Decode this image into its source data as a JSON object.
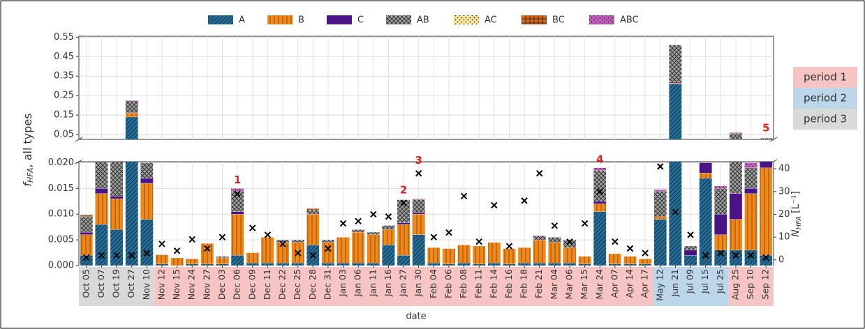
{
  "chart_data": {
    "type": "stacked-bar-broken",
    "xlabel": "date",
    "ylabel": {
      "symbol": "f",
      "subscript": "HFA",
      "rest": ", all types"
    },
    "y2label": {
      "symbol": "N",
      "subscript": "HFA",
      "unit": "[L⁻¹]"
    },
    "categories": [
      "Oct 05",
      "Oct 07",
      "Oct 19",
      "Oct 27",
      "Nov 10",
      "Nov 12",
      "Nov 15",
      "Nov 24",
      "Nov 27",
      "Dec 03",
      "Dec 06",
      "Dec 09",
      "Dec 11",
      "Dec 22",
      "Dec 25",
      "Dec 28",
      "Dec 31",
      "Jan 03",
      "Jan 06",
      "Jan 11",
      "Jan 16",
      "Jan 27",
      "Jan 30",
      "Feb 04",
      "Feb 06",
      "Feb 08",
      "Feb 11",
      "Feb 14",
      "Feb 16",
      "Feb 18",
      "Feb 21",
      "Mar 04",
      "Mar 06",
      "Mar 15",
      "Mar 24",
      "Apr 07",
      "Apr 14",
      "Apr 17",
      "May 12",
      "Jun 21",
      "Jul 09",
      "Jul 15",
      "Jul 25",
      "Aug 25",
      "Sep 10",
      "Sep 12"
    ],
    "series": [
      {
        "name": "A",
        "color": "#1f6e9c",
        "hatch": "diag",
        "values": [
          0.002,
          0.008,
          0.007,
          0.14,
          0.009,
          0.0003,
          0,
          0.0003,
          0.0003,
          0.0003,
          0.002,
          0.0005,
          0.0005,
          0.0005,
          0.0005,
          0.004,
          0.0005,
          0.0005,
          0.0005,
          0.0005,
          0.004,
          0.002,
          0.006,
          0.0005,
          0.0003,
          0.0005,
          0.0003,
          0.0005,
          0.0003,
          0.0005,
          0.0005,
          0.0005,
          0.0005,
          0.0003,
          0.0105,
          0.0003,
          0.0003,
          0.0003,
          0.009,
          0.31,
          0.002,
          0.017,
          0.003,
          0.003,
          0.003,
          0.002
        ]
      },
      {
        "name": "B",
        "color": "#f0891c",
        "hatch": "vert",
        "values": [
          0.004,
          0.006,
          0.006,
          0.02,
          0.007,
          0.0018,
          0.0015,
          0.001,
          0.004,
          0.0012,
          0.008,
          0.002,
          0.005,
          0.004,
          0.004,
          0.006,
          0.004,
          0.005,
          0.006,
          0.0055,
          0.003,
          0.006,
          0.004,
          0.003,
          0.003,
          0.0035,
          0.0035,
          0.004,
          0.003,
          0.003,
          0.0045,
          0.004,
          0.003,
          0.0015,
          0.0015,
          0.002,
          0.0015,
          0.001,
          0.0005,
          0.005,
          0,
          0.001,
          0.003,
          0.006,
          0.011,
          0.017
        ]
      },
      {
        "name": "C",
        "color": "#4a1486",
        "hatch": "none",
        "values": [
          0.0005,
          0.001,
          0.0005,
          0.003,
          0.001,
          0,
          0,
          0,
          0,
          0,
          0.0005,
          0,
          0,
          0,
          0,
          0,
          0,
          0,
          0,
          0,
          0,
          0.0003,
          0.0003,
          0,
          0,
          0,
          0,
          0,
          0,
          0,
          0,
          0,
          0,
          0,
          0.0005,
          0,
          0,
          0,
          0,
          0.005,
          0.001,
          0.002,
          0.004,
          0.005,
          0.001,
          0.002
        ]
      },
      {
        "name": "AB",
        "color": "#a0a0a0",
        "hatch": "cross",
        "values": [
          0.003,
          0.006,
          0.007,
          0.06,
          0.003,
          0,
          0,
          0,
          0,
          0.0003,
          0.004,
          0,
          0,
          0.0005,
          0.0005,
          0.0008,
          0.0005,
          0,
          0.0005,
          0.0005,
          0.0008,
          0.0045,
          0.0025,
          0,
          0,
          0,
          0,
          0,
          0,
          0,
          0.0008,
          0.001,
          0.0015,
          0,
          0.006,
          0,
          0,
          0,
          0.005,
          0.19,
          0.0008,
          0,
          0.005,
          0.04,
          0.004,
          0.01
        ]
      },
      {
        "name": "AC",
        "color": "#fde89a",
        "hatch": "dots",
        "values": [
          0,
          0,
          0,
          0,
          0,
          0,
          0,
          0,
          0,
          0,
          0,
          0,
          0,
          0,
          0,
          0,
          0,
          0,
          0,
          0,
          0,
          0,
          0,
          0,
          0,
          0,
          0,
          0,
          0,
          0,
          0,
          0,
          0,
          0,
          0,
          0,
          0,
          0,
          0,
          0,
          0,
          0,
          0,
          0,
          0,
          0
        ]
      },
      {
        "name": "BC",
        "color": "#d2651a",
        "hatch": "plus",
        "values": [
          0.0003,
          0,
          0,
          0,
          0,
          0,
          0,
          0,
          0,
          0,
          0,
          0,
          0,
          0,
          0,
          0.0003,
          0,
          0,
          0,
          0,
          0,
          0,
          0,
          0,
          0,
          0,
          0,
          0,
          0,
          0,
          0,
          0,
          0,
          0,
          0,
          0,
          0,
          0,
          0,
          0,
          0,
          0,
          0,
          0,
          0,
          0
        ]
      },
      {
        "name": "ABC",
        "color": "#c45bbf",
        "hatch": "dots",
        "values": [
          0,
          0,
          0,
          0.003,
          0,
          0,
          0,
          0,
          0,
          0,
          0.0005,
          0,
          0,
          0,
          0,
          0,
          0,
          0,
          0,
          0,
          0,
          0,
          0.0002,
          0,
          0,
          0,
          0,
          0,
          0,
          0,
          0,
          0,
          0,
          0,
          0.0005,
          0,
          0,
          0,
          0.0003,
          0.002,
          0,
          0,
          0.0005,
          0.006,
          0.001,
          0.002
        ]
      }
    ],
    "n_hfa": {
      "axis": "y2",
      "color": "#000000",
      "values": [
        1,
        2,
        2,
        2,
        3,
        7,
        4,
        9,
        5,
        10,
        29,
        14,
        11,
        7,
        3,
        2,
        5,
        16,
        17,
        20,
        19,
        25,
        38,
        10,
        12,
        28,
        8,
        24,
        6,
        26,
        38,
        15,
        8,
        16,
        30,
        8,
        5,
        3,
        41,
        21,
        11,
        2,
        3,
        2,
        2,
        1
      ]
    },
    "ylim_upper": [
      0.025,
      0.555
    ],
    "yticks_upper": [
      0.05,
      0.15,
      0.25,
      0.35,
      0.45,
      0.55
    ],
    "ylim": [
      0,
      0.0202
    ],
    "yticks": [
      {
        "value": 0,
        "label": "0.000"
      },
      0.005,
      {
        "value": 0.01,
        "label": "0.010"
      },
      0.015,
      {
        "value": 0.02,
        "label": "0.020"
      }
    ],
    "y2lim": [
      -2.5,
      43.1
    ],
    "y2ticks": [
      0,
      10,
      20,
      30,
      40
    ],
    "grid": true,
    "periods": [
      {
        "name": "period 1",
        "color": "#f7c4c4"
      },
      {
        "name": "period 2",
        "color": "#bcd6ea"
      },
      {
        "name": "period 3",
        "color": "#d9d9d9"
      }
    ],
    "spans": [
      {
        "period": 2,
        "start": 0,
        "end": 4
      },
      {
        "period": 0,
        "start": 5,
        "end": 37
      },
      {
        "period": 1,
        "start": 38,
        "end": 42
      },
      {
        "period": 0,
        "start": 43,
        "end": 45
      }
    ],
    "annotations": [
      {
        "text": "1",
        "at": 10
      },
      {
        "text": "2",
        "at": 21
      },
      {
        "text": "3",
        "at": 22
      },
      {
        "text": "4",
        "at": 34
      },
      {
        "text": "5",
        "at": 45
      }
    ]
  }
}
